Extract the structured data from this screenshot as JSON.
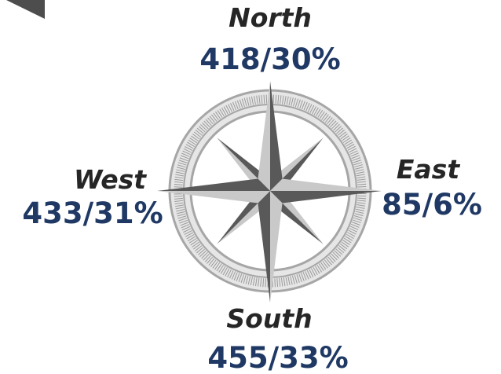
{
  "directions": [
    {
      "name": "North",
      "label": "418/30%"
    },
    {
      "name": "West",
      "label": "433/31%"
    },
    {
      "name": "East",
      "label": "85/6%"
    },
    {
      "name": "South",
      "label": "455/33%"
    }
  ]
}
